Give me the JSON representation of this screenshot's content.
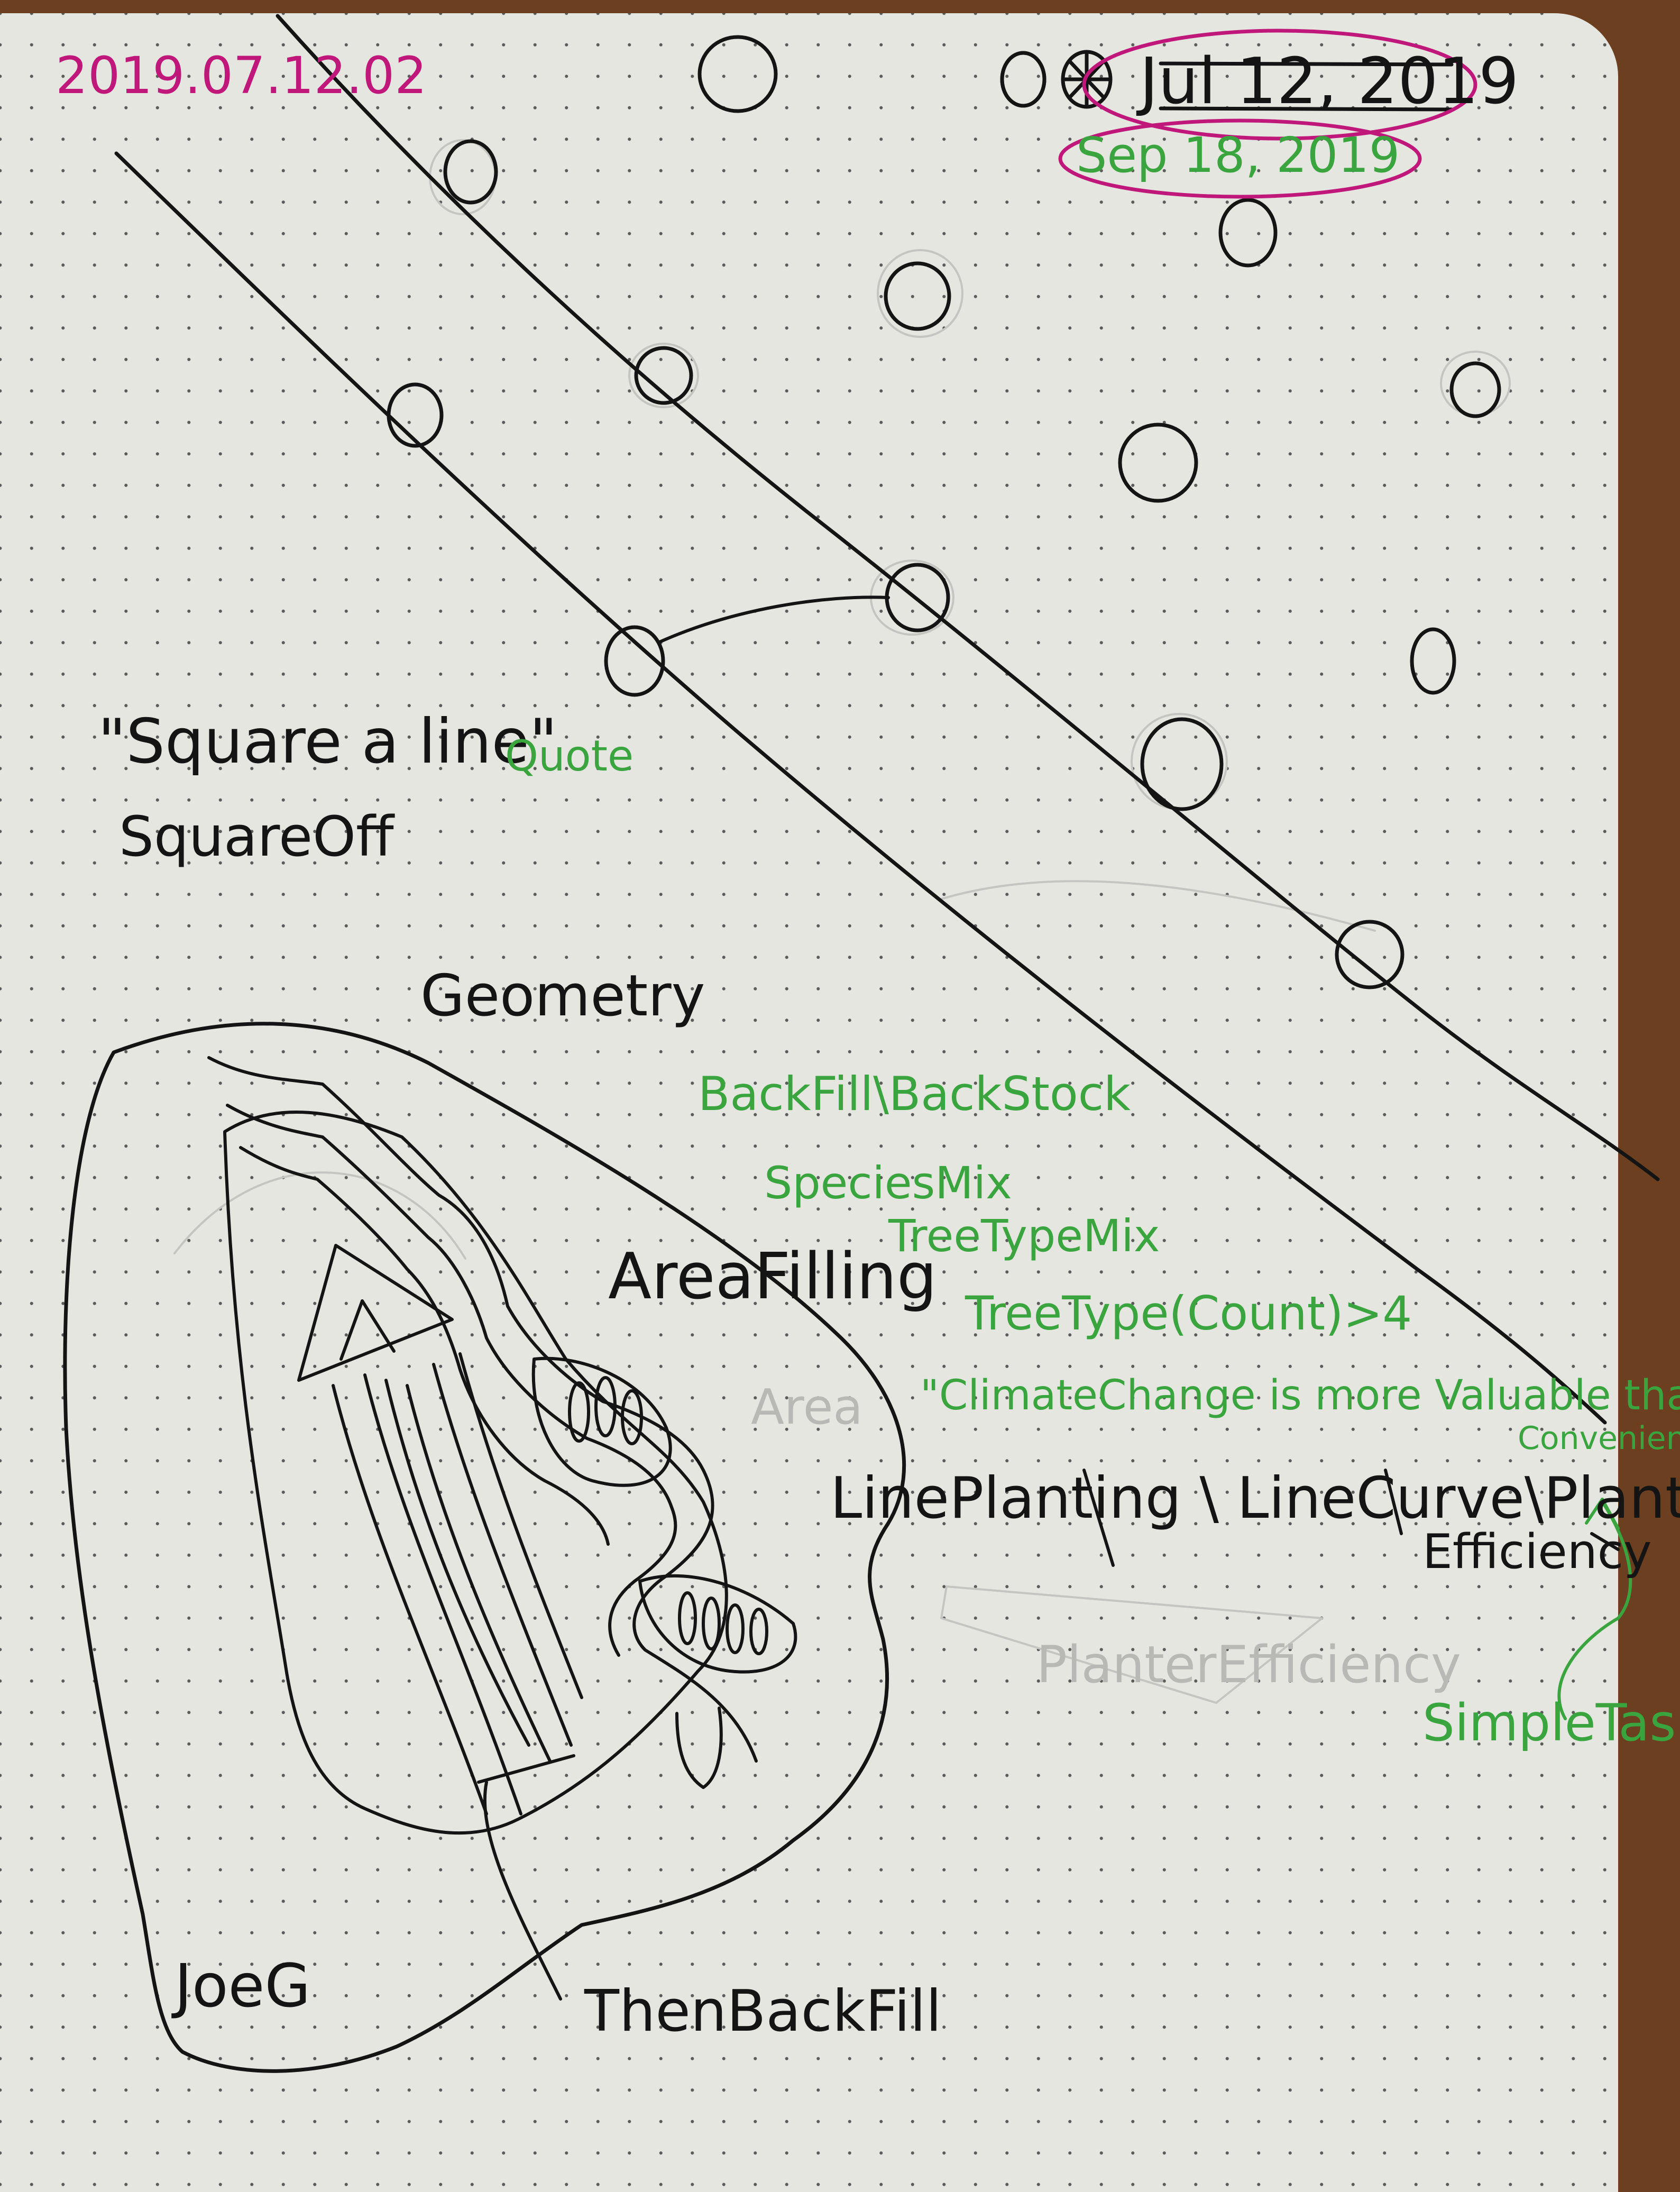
{
  "notes": {
    "date_stamp": "2019.07.12.02",
    "date_original": "Jul 12, 2019",
    "date_revisited": "Sep 18, 2019",
    "quote_phrase": "\"Square a line\"",
    "quote_tag": "Quote",
    "square_off": "SquareOff",
    "geometry": "Geometry",
    "back_fill_back_stock": "BackFill\\BackStock",
    "species_mix": "SpeciesMix",
    "tree_type_mix": "TreeTypeMix",
    "tree_type_count": "TreeType(Count)>4",
    "area_filling": "AreaFilling",
    "climate_change": "\"ClimateChange is more Valuable than",
    "convenience": "Convenience\"",
    "line_planting": "LinePlanting \\ LineCurve\\Planter",
    "efficiency": "Efficiency",
    "simple_task": "SimpleTask",
    "joe_g": "JoeG",
    "then_back_fill": "ThenBackFill"
  },
  "colors": {
    "ink_black": "#141414",
    "ink_green": "#3aa53e",
    "ink_magenta": "#c0187a",
    "paper": "#e6e6e1",
    "desk": "#6b3f1f"
  }
}
